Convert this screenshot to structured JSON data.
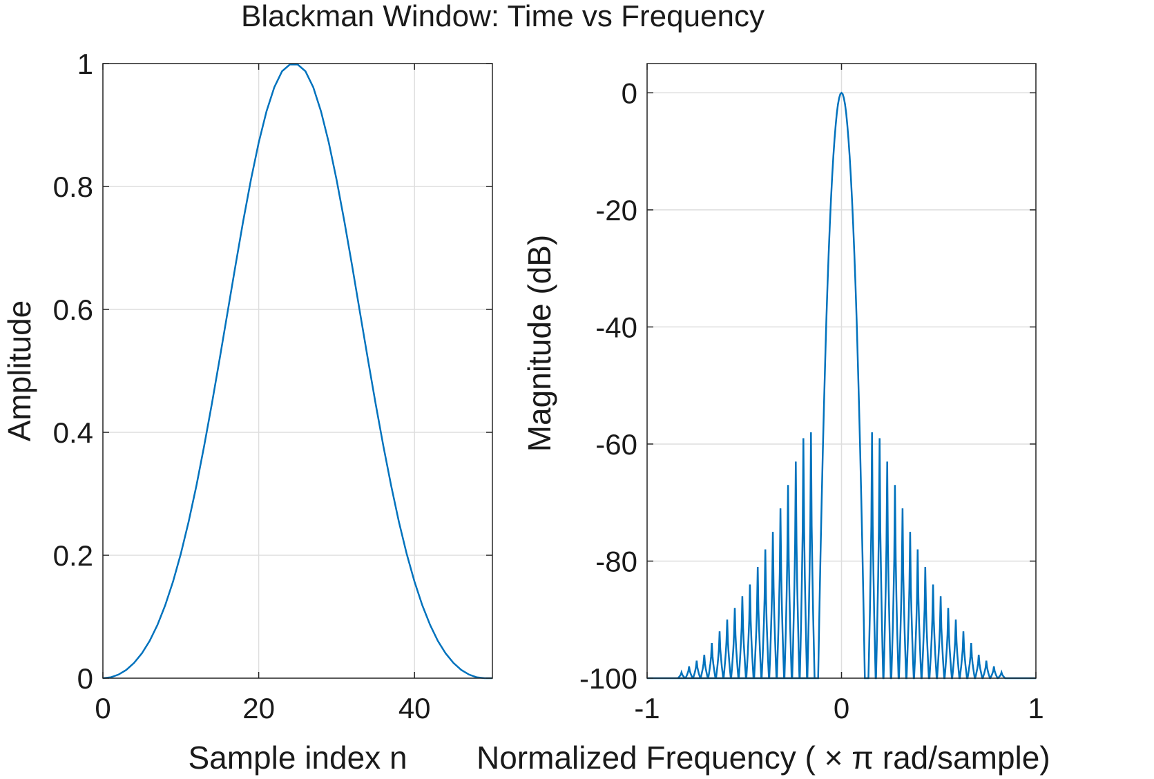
{
  "figure": {
    "title": "Blackman Window: Time vs Frequency"
  },
  "chart_data": [
    {
      "type": "line",
      "xlabel": "Sample index n",
      "ylabel": "Amplitude",
      "xlim": [
        0,
        50
      ],
      "ylim": [
        0,
        1
      ],
      "xticks": [
        "0",
        "20",
        "40"
      ],
      "yticks": [
        "0",
        "0.2",
        "0.4",
        "0.6",
        "0.8",
        "1"
      ],
      "grid": true,
      "line_color": "#0072BD",
      "series": [
        {
          "x": [
            0,
            1,
            2,
            3,
            4,
            5,
            6,
            7,
            8,
            9,
            10,
            11,
            12,
            13,
            14,
            15,
            16,
            17,
            18,
            19,
            20,
            21,
            22,
            23,
            24,
            25,
            26,
            27,
            28,
            29,
            30,
            31,
            32,
            33,
            34,
            35,
            36,
            37,
            38,
            39,
            40,
            41,
            42,
            43,
            44,
            45,
            46,
            47,
            48,
            49,
            50
          ],
          "values": [
            0,
            0.0014,
            0.0058,
            0.0134,
            0.0248,
            0.0403,
            0.0607,
            0.0866,
            0.1185,
            0.157,
            0.2023,
            0.2544,
            0.3131,
            0.3777,
            0.4472,
            0.5203,
            0.5953,
            0.6702,
            0.7428,
            0.8107,
            0.8713,
            0.9222,
            0.9615,
            0.9874,
            0.9984,
            0.9984,
            0.9874,
            0.9615,
            0.9222,
            0.8713,
            0.8107,
            0.7428,
            0.6702,
            0.5953,
            0.5203,
            0.4472,
            0.3777,
            0.3131,
            0.2544,
            0.2023,
            0.157,
            0.1185,
            0.0866,
            0.0607,
            0.0403,
            0.0248,
            0.0134,
            0.0058,
            0.0014,
            0,
            0
          ]
        }
      ]
    },
    {
      "type": "line",
      "xlabel": "Normalized  Frequency  ( × π  rad/sample)",
      "ylabel": "Magnitude (dB)",
      "xlim": [
        -1,
        1
      ],
      "ylim": [
        -100,
        5
      ],
      "xticks": [
        "-1",
        "0",
        "1"
      ],
      "yticks": [
        "0",
        "-20",
        "-40",
        "-60",
        "-80",
        "-100"
      ],
      "grid": true,
      "line_color": "#0072BD",
      "mainlobe": {
        "center": 0,
        "half_width": 0.12,
        "peak_db": 0
      },
      "sidelobes": {
        "x_peaks": [
          0.157,
          0.196,
          0.235,
          0.275,
          0.314,
          0.353,
          0.392,
          0.431,
          0.471,
          0.51,
          0.549,
          0.588,
          0.627,
          0.667,
          0.706,
          0.745,
          0.784,
          0.823
        ],
        "peak_db": [
          -58,
          -59,
          -63,
          -67,
          -71,
          -75,
          -78,
          -81,
          -84,
          -86,
          -88,
          -90,
          -92,
          -94,
          -96,
          -97,
          -98,
          -99
        ],
        "null_db": -100,
        "symmetric": true
      }
    }
  ]
}
